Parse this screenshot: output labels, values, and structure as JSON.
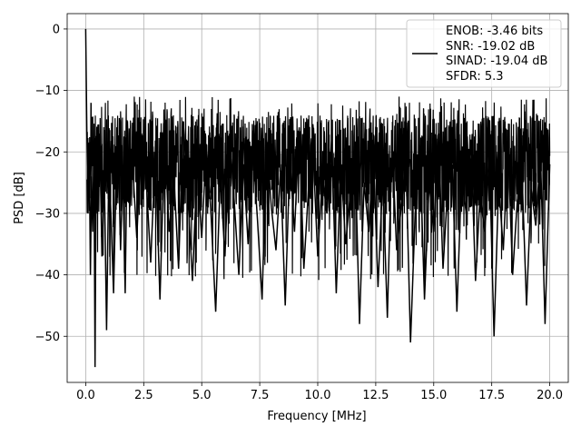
{
  "chart_data": {
    "type": "line",
    "xlabel": "Frequency [MHz]",
    "ylabel": "PSD [dB]",
    "xlim": [
      -0.8,
      20.8
    ],
    "ylim": [
      -57.5,
      2.5
    ],
    "xticks": [
      0.0,
      2.5,
      5.0,
      7.5,
      10.0,
      12.5,
      15.0,
      17.5,
      20.0
    ],
    "xtick_labels": [
      "0.0",
      "2.5",
      "5.0",
      "7.5",
      "10.0",
      "12.5",
      "15.0",
      "17.5",
      "20.0"
    ],
    "yticks": [
      0,
      -10,
      -20,
      -30,
      -40,
      -50
    ],
    "ytick_labels": [
      "0",
      "−10",
      "−20",
      "−30",
      "−40",
      "−50"
    ],
    "grid": true,
    "legend_position": "top-right",
    "line_color": "#000000",
    "series": [
      {
        "x": [
          0.0,
          0.02,
          0.05,
          0.1,
          0.15,
          0.2,
          0.25,
          0.3,
          0.35,
          0.4,
          0.45,
          0.5,
          0.6,
          0.7,
          0.8,
          0.9,
          1.0,
          1.1,
          1.2,
          1.3,
          1.4,
          1.5,
          1.6,
          1.7,
          1.8,
          1.9,
          2.0,
          2.2,
          2.4,
          2.6,
          2.8,
          3.0,
          3.2,
          3.4,
          3.6,
          3.8,
          4.0,
          4.2,
          4.4,
          4.6,
          4.8,
          5.0,
          5.2,
          5.4,
          5.6,
          5.8,
          6.0,
          6.2,
          6.4,
          6.6,
          6.8,
          7.0,
          7.2,
          7.4,
          7.6,
          7.8,
          8.0,
          8.2,
          8.4,
          8.6,
          8.8,
          9.0,
          9.2,
          9.4,
          9.6,
          9.8,
          10.0,
          10.2,
          10.4,
          10.6,
          10.8,
          11.0,
          11.2,
          11.4,
          11.6,
          11.8,
          12.0,
          12.2,
          12.4,
          12.6,
          12.8,
          13.0,
          13.2,
          13.4,
          13.6,
          13.8,
          14.0,
          14.2,
          14.4,
          14.6,
          14.8,
          15.0,
          15.2,
          15.4,
          15.6,
          15.8,
          16.0,
          16.2,
          16.4,
          16.6,
          16.8,
          17.0,
          17.2,
          17.4,
          17.6,
          17.8,
          18.0,
          18.2,
          18.4,
          18.6,
          18.8,
          19.0,
          19.2,
          19.4,
          19.6,
          19.8,
          20.0
        ],
        "y": [
          0.0,
          -8,
          -17,
          -30,
          -19,
          -40,
          -24,
          -33,
          -18,
          -55,
          -21,
          -30,
          -17,
          -37,
          -24,
          -49,
          -21,
          -32,
          -43,
          -26,
          -19,
          -36,
          -23,
          -43,
          -15,
          -29,
          -21,
          -34,
          -17,
          -24,
          -38,
          -20,
          -44,
          -18,
          -33,
          -24,
          -39,
          -15,
          -27,
          -41,
          -22,
          -34,
          -19,
          -30,
          -46,
          -24,
          -37,
          -17,
          -28,
          -40,
          -22,
          -35,
          -19,
          -31,
          -44,
          -18,
          -29,
          -36,
          -23,
          -45,
          -21,
          -33,
          -16,
          -39,
          -26,
          -20,
          -37,
          -24,
          -30,
          -18,
          -43,
          -22,
          -35,
          -27,
          -19,
          -48,
          -25,
          -33,
          -20,
          -42,
          -24,
          -47,
          -18,
          -36,
          -29,
          -21,
          -51,
          -30,
          -19,
          -44,
          -25,
          -33,
          -17,
          -39,
          -26,
          -22,
          -46,
          -24,
          -30,
          -18,
          -41,
          -27,
          -33,
          -21,
          -50,
          -25,
          -36,
          -19,
          -40,
          -28,
          -23,
          -45,
          -26,
          -32,
          -20,
          -48,
          -22
        ]
      }
    ],
    "legend_entries": [
      "ENOB: -3.46 bits",
      "SNR: -19.02 dB",
      "SINAD: -19.04 dB",
      "SFDR: 5.3"
    ]
  }
}
